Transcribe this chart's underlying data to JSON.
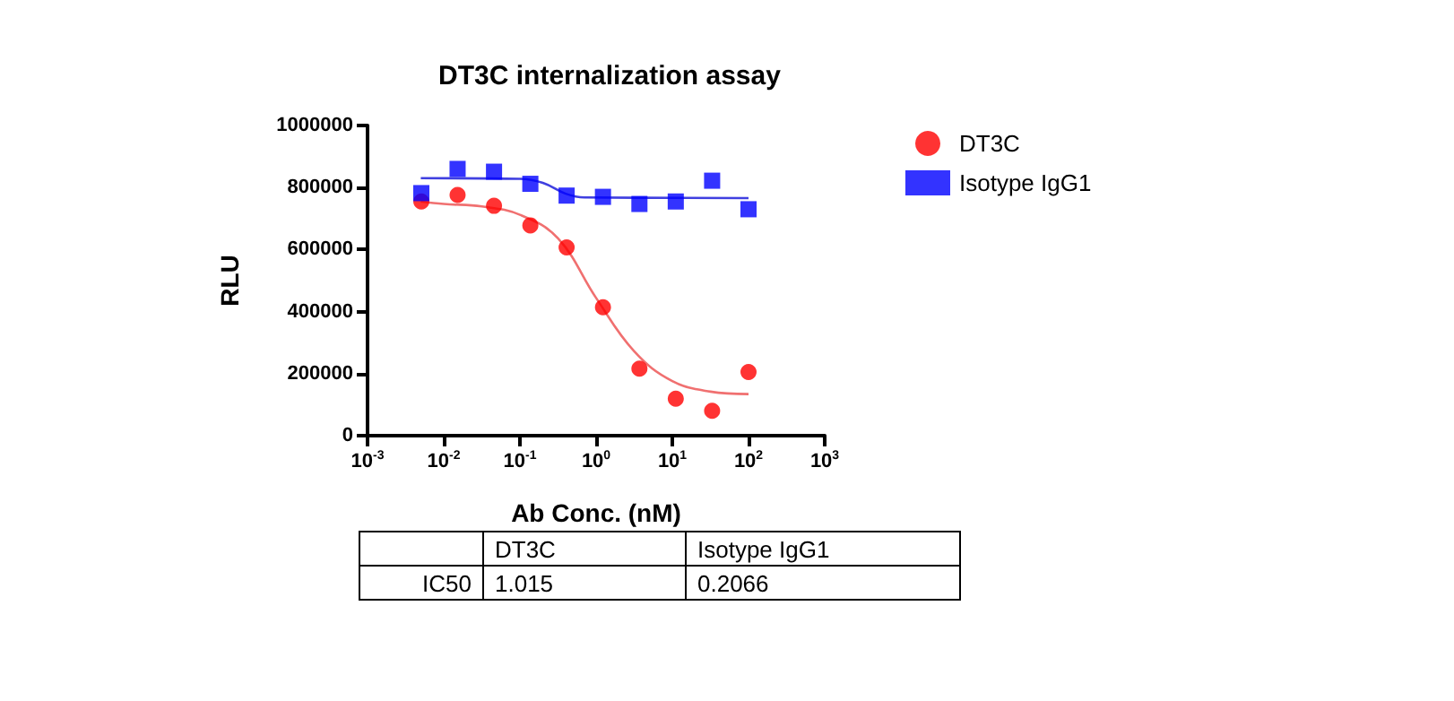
{
  "chart_data": {
    "type": "scatter",
    "title": "DT3C internalization assay",
    "xlabel": "Ab Conc. (nM)",
    "ylabel": "RLU",
    "log": "x",
    "xlim": [
      0.001,
      1000
    ],
    "xticks": [
      {
        "value": 0.001,
        "label": "10$^{-3}$"
      },
      {
        "value": 0.01,
        "label": "10$^{-2}$"
      },
      {
        "value": 0.1,
        "label": "10$^{-1}$"
      },
      {
        "value": 1,
        "label": "10$^{0}$"
      },
      {
        "value": 10,
        "label": "10$^{1}$"
      },
      {
        "value": 100,
        "label": "10$^{2}$"
      },
      {
        "value": 1000,
        "label": "10$^{3}$"
      }
    ],
    "ylim": [
      0,
      1000000
    ],
    "yticks": [
      0,
      200000,
      400000,
      600000,
      800000,
      1000000
    ],
    "grid": false,
    "legend": "right",
    "annotations": [
      "IC50",
      "1.015",
      "0.2066"
    ],
    "series": [
      {
        "name": "DT3C",
        "color": "#ff0000",
        "marker": "circle",
        "x": [
          0.00508,
          0.0152,
          0.0457,
          0.137,
          0.41,
          1.23,
          3.7,
          11.1,
          33.3,
          100
        ],
        "values": [
          755000,
          776000,
          741000,
          678000,
          607000,
          414000,
          216000,
          119000,
          80000,
          205000
        ]
      },
      {
        "name": "Isotype IgG1",
        "color": "#0000ff",
        "marker": "square",
        "x": [
          0.00508,
          0.0152,
          0.0457,
          0.137,
          0.41,
          1.23,
          3.7,
          11.1,
          33.3,
          100
        ],
        "values": [
          782000,
          860000,
          851000,
          812000,
          774000,
          770000,
          747000,
          755000,
          822000,
          730000
        ]
      },
      {
        "type": "line",
        "color": "#f07070",
        "marker": "none",
        "x": [
          0.005,
          0.01,
          0.0316,
          0.1,
          0.316,
          1,
          3.16,
          10,
          31.6,
          100
        ],
        "values": [
          755000,
          747000,
          739000,
          712000,
          636000,
          444000,
          272000,
          176000,
          142000,
          134000
        ]
      },
      {
        "type": "line",
        "color": "#4040e0",
        "marker": "none",
        "x": [
          0.005,
          0.1,
          0.2,
          0.4,
          0.7,
          100
        ],
        "values": [
          830000,
          828000,
          815000,
          780000,
          768000,
          766000
        ]
      }
    ]
  }
}
